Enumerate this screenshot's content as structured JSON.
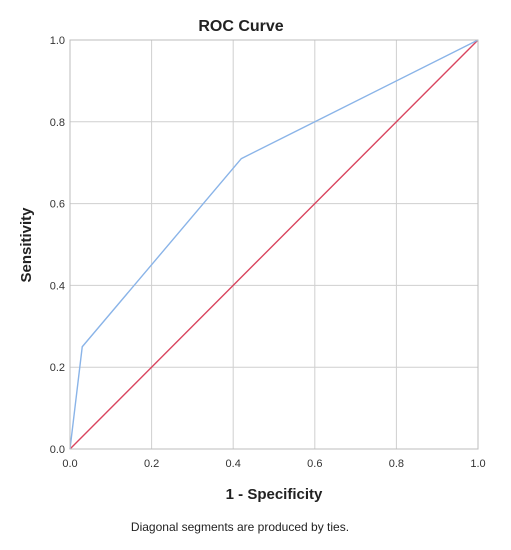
{
  "chart_data": {
    "type": "line",
    "title": "ROC Curve",
    "xlabel": "1 - Specificity",
    "ylabel": "Sensitivity",
    "footnote": "Diagonal segments are produced by ties.",
    "xlim": [
      0,
      1
    ],
    "ylim": [
      0,
      1
    ],
    "x_ticks": [
      "0.0",
      "0.2",
      "0.4",
      "0.6",
      "0.8",
      "1.0"
    ],
    "y_ticks": [
      "0.0",
      "0.2",
      "0.4",
      "0.6",
      "0.8",
      "1.0"
    ],
    "grid": true,
    "legend": "none",
    "series": [
      {
        "role": "roc-curve",
        "color": "#8ab4e8",
        "x": [
          0.0,
          0.03,
          0.42,
          1.0
        ],
        "y": [
          0.0,
          0.25,
          0.71,
          1.0
        ]
      },
      {
        "role": "reference-diagonal",
        "color": "#d9455f",
        "x": [
          0.0,
          1.0
        ],
        "y": [
          0.0,
          1.0
        ]
      }
    ]
  }
}
